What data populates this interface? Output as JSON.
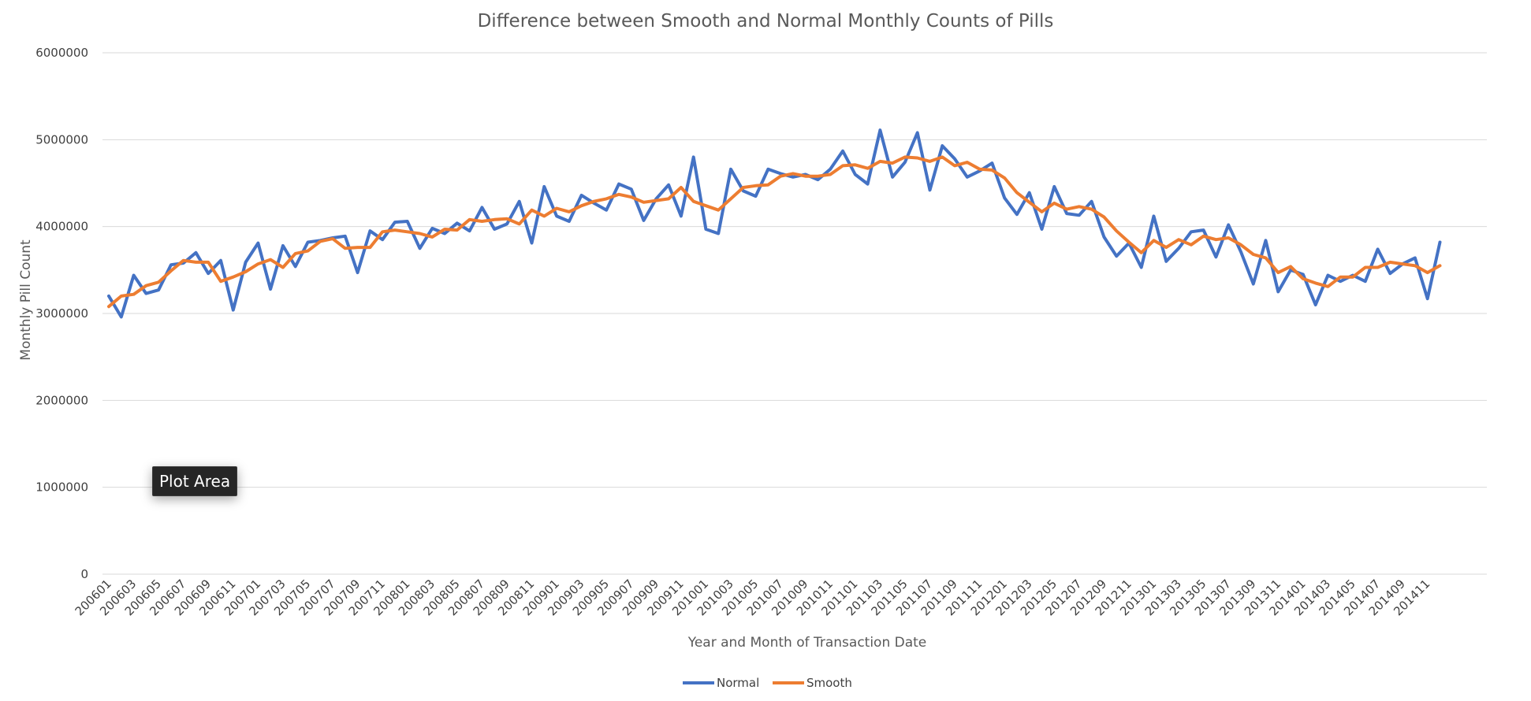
{
  "chart_data": {
    "type": "line",
    "title": "Difference between Smooth and Normal Monthly Counts of Pills",
    "xlabel": "Year and Month of Transaction Date",
    "ylabel": "Monthly Pill Count",
    "ylim": [
      0,
      6000000
    ],
    "yticks": [
      "0",
      "1000000",
      "2000000",
      "3000000",
      "4000000",
      "5000000",
      "6000000"
    ],
    "grid": true,
    "legend_position": "bottom",
    "x": [
      "200601",
      "200602",
      "200603",
      "200604",
      "200605",
      "200606",
      "200607",
      "200608",
      "200609",
      "200610",
      "200611",
      "200612",
      "200701",
      "200702",
      "200703",
      "200704",
      "200705",
      "200706",
      "200707",
      "200708",
      "200709",
      "200710",
      "200711",
      "200712",
      "200801",
      "200802",
      "200803",
      "200804",
      "200805",
      "200806",
      "200807",
      "200808",
      "200809",
      "200810",
      "200811",
      "200812",
      "200901",
      "200902",
      "200903",
      "200904",
      "200905",
      "200906",
      "200907",
      "200908",
      "200909",
      "200910",
      "200911",
      "200912",
      "201001",
      "201002",
      "201003",
      "201004",
      "201005",
      "201006",
      "201007",
      "201008",
      "201009",
      "201010",
      "201011",
      "201012",
      "201101",
      "201102",
      "201103",
      "201104",
      "201105",
      "201106",
      "201107",
      "201108",
      "201109",
      "201110",
      "201111",
      "201112",
      "201201",
      "201202",
      "201203",
      "201204",
      "201205",
      "201206",
      "201207",
      "201208",
      "201209",
      "201210",
      "201211",
      "201212",
      "201301",
      "201302",
      "201303",
      "201304",
      "201305",
      "201306",
      "201307",
      "201308",
      "201309",
      "201310",
      "201311",
      "201312",
      "201401",
      "201402",
      "201403",
      "201404",
      "201405",
      "201406",
      "201407",
      "201408",
      "201409",
      "201410",
      "201411",
      "201412"
    ],
    "x_tick_labels": [
      "200601",
      "200603",
      "200605",
      "200607",
      "200609",
      "200611",
      "200701",
      "200703",
      "200705",
      "200707",
      "200709",
      "200711",
      "200801",
      "200803",
      "200805",
      "200807",
      "200809",
      "200811",
      "200901",
      "200903",
      "200905",
      "200907",
      "200909",
      "200911",
      "201001",
      "201003",
      "201005",
      "201007",
      "201009",
      "201011",
      "201101",
      "201103",
      "201105",
      "201107",
      "201109",
      "201111",
      "201201",
      "201203",
      "201205",
      "201207",
      "201209",
      "201211",
      "201301",
      "201303",
      "201305",
      "201307",
      "201309",
      "201311",
      "201401",
      "201403",
      "201405",
      "201407",
      "201409",
      "201411"
    ],
    "series": [
      {
        "name": "Normal",
        "color": "#4472c4",
        "values": [
          3200000,
          2960000,
          3440000,
          3230000,
          3270000,
          3560000,
          3580000,
          3700000,
          3460000,
          3610000,
          3040000,
          3590000,
          3810000,
          3280000,
          3780000,
          3540000,
          3820000,
          3840000,
          3870000,
          3890000,
          3470000,
          3950000,
          3850000,
          4050000,
          4060000,
          3750000,
          3980000,
          3920000,
          4040000,
          3950000,
          4220000,
          3970000,
          4030000,
          4290000,
          3810000,
          4460000,
          4120000,
          4060000,
          4360000,
          4270000,
          4190000,
          4490000,
          4430000,
          4070000,
          4320000,
          4480000,
          4120000,
          4800000,
          3970000,
          3920000,
          4660000,
          4410000,
          4350000,
          4660000,
          4610000,
          4570000,
          4600000,
          4540000,
          4660000,
          4870000,
          4600000,
          4490000,
          5110000,
          4570000,
          4740000,
          5080000,
          4420000,
          4930000,
          4780000,
          4570000,
          4640000,
          4730000,
          4330000,
          4140000,
          4390000,
          3970000,
          4460000,
          4150000,
          4130000,
          4290000,
          3880000,
          3660000,
          3810000,
          3530000,
          4120000,
          3600000,
          3750000,
          3940000,
          3960000,
          3650000,
          4020000,
          3710000,
          3340000,
          3840000,
          3250000,
          3500000,
          3450000,
          3100000,
          3440000,
          3370000,
          3440000,
          3370000,
          3740000,
          3460000,
          3570000,
          3640000,
          3170000,
          3820000
        ]
      },
      {
        "name": "Smooth",
        "color": "#ed7d31",
        "values": [
          3080000,
          3200000,
          3220000,
          3320000,
          3360000,
          3490000,
          3610000,
          3590000,
          3590000,
          3370000,
          3420000,
          3480000,
          3570000,
          3620000,
          3530000,
          3690000,
          3720000,
          3830000,
          3860000,
          3750000,
          3760000,
          3760000,
          3940000,
          3960000,
          3940000,
          3920000,
          3880000,
          3970000,
          3960000,
          4080000,
          4060000,
          4080000,
          4090000,
          4030000,
          4190000,
          4120000,
          4210000,
          4170000,
          4240000,
          4290000,
          4320000,
          4370000,
          4340000,
          4280000,
          4300000,
          4320000,
          4450000,
          4290000,
          4240000,
          4190000,
          4320000,
          4450000,
          4470000,
          4480000,
          4580000,
          4610000,
          4580000,
          4580000,
          4600000,
          4700000,
          4710000,
          4670000,
          4750000,
          4730000,
          4800000,
          4790000,
          4750000,
          4800000,
          4700000,
          4740000,
          4660000,
          4650000,
          4560000,
          4390000,
          4280000,
          4170000,
          4270000,
          4200000,
          4230000,
          4200000,
          4110000,
          3950000,
          3820000,
          3700000,
          3840000,
          3760000,
          3850000,
          3790000,
          3890000,
          3850000,
          3870000,
          3790000,
          3680000,
          3640000,
          3470000,
          3540000,
          3400000,
          3350000,
          3310000,
          3420000,
          3420000,
          3530000,
          3530000,
          3590000,
          3570000,
          3550000,
          3470000,
          3550000
        ]
      }
    ]
  },
  "tooltip": {
    "text": "Plot Area"
  }
}
